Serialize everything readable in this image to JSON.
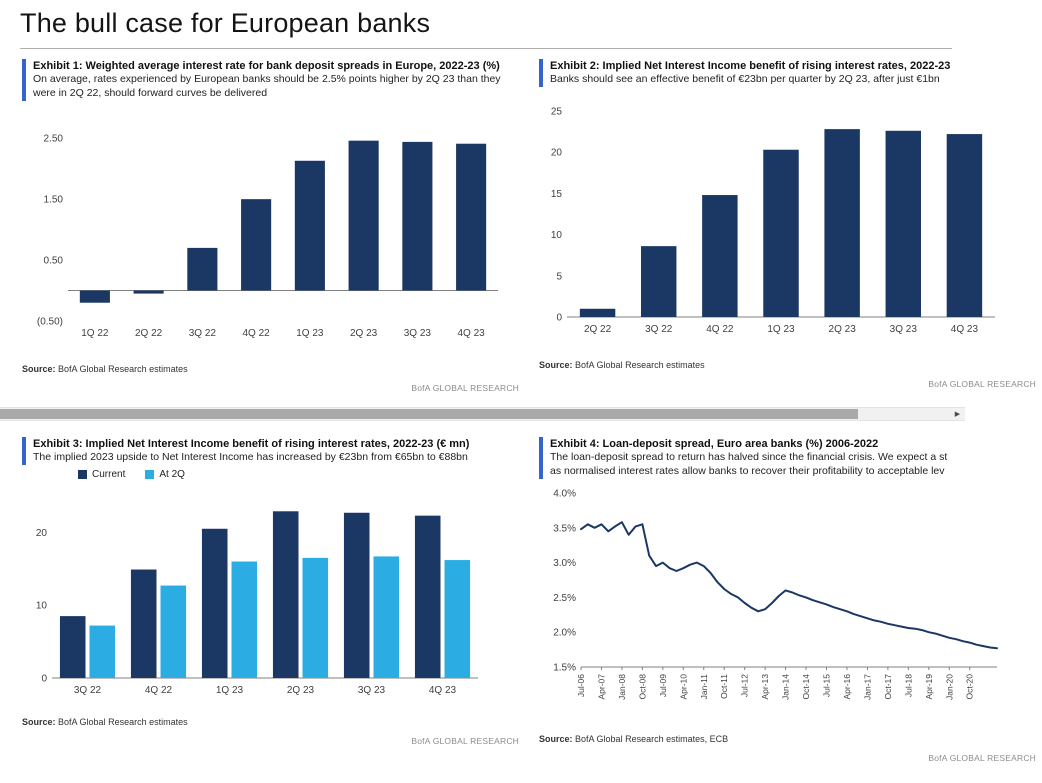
{
  "page": {
    "title": "The bull case for European banks"
  },
  "colors": {
    "navy": "#1b3764",
    "light_blue": "#2bace2",
    "accent_blue": "#3465c8",
    "brand_gray": "#8c8c8c"
  },
  "scrollbar": {
    "right_arrow": "▶"
  },
  "exhibits": [
    {
      "title": "Exhibit 1: Weighted average interest rate for bank deposit spreads in Europe, 2022-23 (%)",
      "subtitle": "On average, rates experienced by European banks should be 2.5% points higher by 2Q 23 than they were in 2Q 22, should forward curves be delivered",
      "source_label": "Source:",
      "source_text": "BofA Global Research estimates",
      "brand_footer": "BofA GLOBAL RESEARCH"
    },
    {
      "title": "Exhibit 2: Implied Net Interest Income benefit of rising interest rates, 2022-23",
      "subtitle": "Banks should see an effective benefit of €23bn per quarter by 2Q 23, after just €1bn",
      "source_label": "Source:",
      "source_text": "BofA Global Research estimates",
      "brand_footer": "BofA GLOBAL RESEARCH"
    },
    {
      "title": "Exhibit 3: Implied Net Interest Income benefit of rising interest rates, 2022-23 (€ mn)",
      "subtitle": "The implied 2023 upside to Net Interest Income has increased by €23bn from €65bn to €88bn",
      "source_label": "Source:",
      "source_text": "BofA Global Research estimates",
      "brand_footer": "BofA GLOBAL RESEARCH"
    },
    {
      "title": "Exhibit 4: Loan-deposit spread, Euro area banks (%) 2006-2022",
      "subtitle_line1": "The loan-deposit spread to return has halved since the financial crisis. We expect a st",
      "subtitle_line2": "as normalised interest rates allow banks to recover their profitability to acceptable lev",
      "source_label": "Source:",
      "source_text": "BofA Global Research estimates, ECB",
      "brand_footer": "BofA GLOBAL RESEARCH"
    }
  ],
  "chart_data": [
    {
      "type": "bar",
      "title": "Weighted average interest rate for bank deposit spreads in Europe, 2022-23 (%)",
      "categories": [
        "1Q 22",
        "2Q 22",
        "3Q 22",
        "4Q 22",
        "1Q 23",
        "2Q 23",
        "3Q 23",
        "4Q 23"
      ],
      "values": [
        -0.2,
        -0.05,
        0.7,
        1.5,
        2.13,
        2.46,
        2.44,
        2.41
      ],
      "ylim": [
        -0.5,
        2.75
      ],
      "yticks": [
        {
          "v": 2.5,
          "label": "2.50"
        },
        {
          "v": 1.5,
          "label": "1.50"
        },
        {
          "v": 0.5,
          "label": "0.50"
        },
        {
          "v": -0.5,
          "label": "(0.50)"
        }
      ],
      "bar_color": "#1b3764",
      "grid": false
    },
    {
      "type": "bar",
      "title": "Implied Net Interest Income benefit of rising interest rates, 2022-23",
      "categories": [
        "2Q 22",
        "3Q 22",
        "4Q 22",
        "1Q 23",
        "2Q 23",
        "3Q 23",
        "4Q 23"
      ],
      "values": [
        1.0,
        8.6,
        14.8,
        20.3,
        22.8,
        22.6,
        22.2
      ],
      "ylim": [
        0,
        25
      ],
      "yticks": [
        {
          "v": 25,
          "label": "25"
        },
        {
          "v": 20,
          "label": "20"
        },
        {
          "v": 15,
          "label": "15"
        },
        {
          "v": 10,
          "label": "10"
        },
        {
          "v": 5,
          "label": "5"
        },
        {
          "v": 0,
          "label": "0"
        }
      ],
      "bar_color": "#1b3764",
      "grid": false
    },
    {
      "type": "grouped_bar",
      "title": "Implied Net Interest Income benefit of rising interest rates, 2022-23 (€ mn)",
      "categories": [
        "3Q 22",
        "4Q 22",
        "1Q 23",
        "2Q 23",
        "3Q 23",
        "4Q 23"
      ],
      "series": [
        {
          "name": "Current",
          "color": "#1b3764",
          "values": [
            8.5,
            14.9,
            20.5,
            22.9,
            22.7,
            22.3
          ]
        },
        {
          "name": "At 2Q",
          "color": "#2bace2",
          "values": [
            7.2,
            12.7,
            16.0,
            16.5,
            16.7,
            16.2
          ]
        }
      ],
      "ylim": [
        0,
        25
      ],
      "yticks": [
        {
          "v": 20,
          "label": "20"
        },
        {
          "v": 10,
          "label": "10"
        },
        {
          "v": 0,
          "label": "0"
        }
      ],
      "legend_position": "top-left",
      "grid": false
    },
    {
      "type": "line",
      "title": "Loan-deposit spread, Euro area banks (%) 2006-2022",
      "line_color": "#1b3764",
      "x_tick_labels": [
        "Jul-06",
        "Apr-07",
        "Jan-08",
        "Oct-08",
        "Jul-09",
        "Apr-10",
        "Jan-11",
        "Oct-11",
        "Jul-12",
        "Apr-13",
        "Jan-14",
        "Oct-14",
        "Jul-15",
        "Apr-16",
        "Jan-17",
        "Oct-17",
        "Jul-18",
        "Apr-19",
        "Jan-20",
        "Oct-20"
      ],
      "tick_every": 3,
      "values": [
        3.48,
        3.55,
        3.5,
        3.55,
        3.45,
        3.52,
        3.58,
        3.4,
        3.52,
        3.55,
        3.1,
        2.95,
        3.0,
        2.92,
        2.88,
        2.92,
        2.97,
        3.0,
        2.95,
        2.85,
        2.72,
        2.62,
        2.55,
        2.5,
        2.42,
        2.35,
        2.3,
        2.33,
        2.42,
        2.52,
        2.6,
        2.57,
        2.53,
        2.5,
        2.46,
        2.43,
        2.4,
        2.36,
        2.33,
        2.3,
        2.26,
        2.23,
        2.2,
        2.17,
        2.15,
        2.12,
        2.1,
        2.08,
        2.06,
        2.05,
        2.03,
        2.0,
        1.98,
        1.95,
        1.92,
        1.9,
        1.87,
        1.85,
        1.82,
        1.8,
        1.78,
        1.77
      ],
      "ylim": [
        1.5,
        4.0
      ],
      "yticks": [
        {
          "v": 4.0,
          "label": "4.0%"
        },
        {
          "v": 3.5,
          "label": "3.5%"
        },
        {
          "v": 3.0,
          "label": "3.0%"
        },
        {
          "v": 2.5,
          "label": "2.5%"
        },
        {
          "v": 2.0,
          "label": "2.0%"
        },
        {
          "v": 1.5,
          "label": "1.5%"
        }
      ],
      "grid": false
    }
  ]
}
